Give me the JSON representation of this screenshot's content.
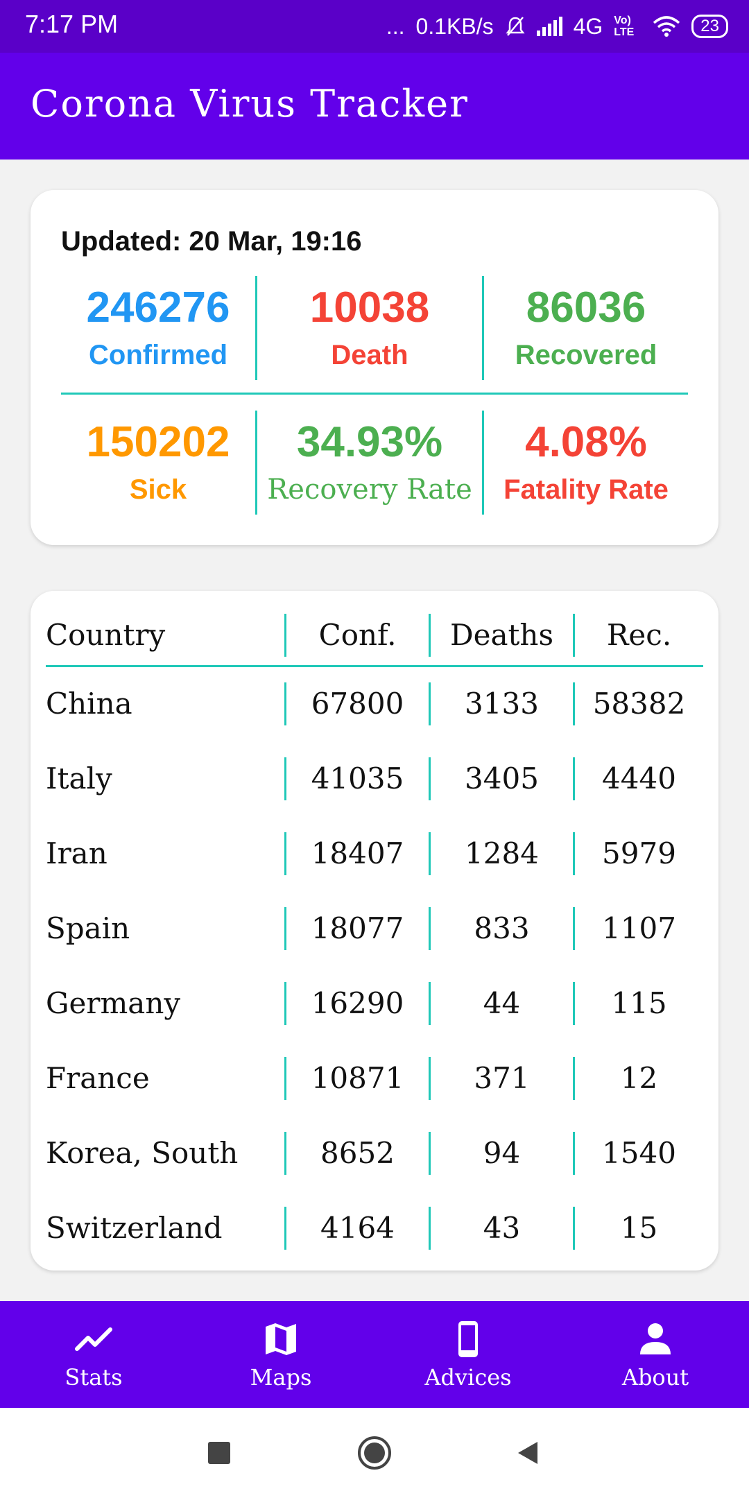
{
  "status_bar": {
    "time": "7:17 PM",
    "dots": "...",
    "speed": "0.1KB/s",
    "network": "4G",
    "volte": "Vo) LTE",
    "battery": "23"
  },
  "app_bar": {
    "title": "Corona Virus Tracker"
  },
  "summary": {
    "updated": "Updated: 20 Mar, 19:16",
    "confirmed": {
      "value": "246276",
      "label": "Confirmed"
    },
    "death": {
      "value": "10038",
      "label": "Death"
    },
    "recovered": {
      "value": "86036",
      "label": "Recovered"
    },
    "sick": {
      "value": "150202",
      "label": "Sick"
    },
    "recovery_rate": {
      "value": "34.93%",
      "label": "Recovery Rate"
    },
    "fatality_rate": {
      "value": "4.08%",
      "label": "Fatality Rate"
    }
  },
  "table": {
    "headers": {
      "country": "Country",
      "confirmed": "Conf.",
      "deaths": "Deaths",
      "recovered": "Rec."
    },
    "rows": [
      {
        "country": "China",
        "confirmed": "67800",
        "deaths": "3133",
        "recovered": "58382"
      },
      {
        "country": "Italy",
        "confirmed": "41035",
        "deaths": "3405",
        "recovered": "4440"
      },
      {
        "country": "Iran",
        "confirmed": "18407",
        "deaths": "1284",
        "recovered": "5979"
      },
      {
        "country": "Spain",
        "confirmed": "18077",
        "deaths": "833",
        "recovered": "1107"
      },
      {
        "country": "Germany",
        "confirmed": "16290",
        "deaths": "44",
        "recovered": "115"
      },
      {
        "country": "France",
        "confirmed": "10871",
        "deaths": "371",
        "recovered": "12"
      },
      {
        "country": "Korea, South",
        "confirmed": "8652",
        "deaths": "94",
        "recovered": "1540"
      },
      {
        "country": "Switzerland",
        "confirmed": "4164",
        "deaths": "43",
        "recovered": "15"
      }
    ]
  },
  "bottom_nav": {
    "items": [
      {
        "label": "Stats",
        "icon": "trending-up-icon"
      },
      {
        "label": "Maps",
        "icon": "map-icon"
      },
      {
        "label": "Advices",
        "icon": "phone-icon"
      },
      {
        "label": "About",
        "icon": "person-icon"
      }
    ]
  },
  "colors": {
    "primary": "#6200ea",
    "status_bar": "#5a00c8",
    "divider": "#1fc8b8",
    "confirmed": "#2196f3",
    "death": "#f44336",
    "recovered": "#4caf50",
    "sick": "#ff9800"
  }
}
